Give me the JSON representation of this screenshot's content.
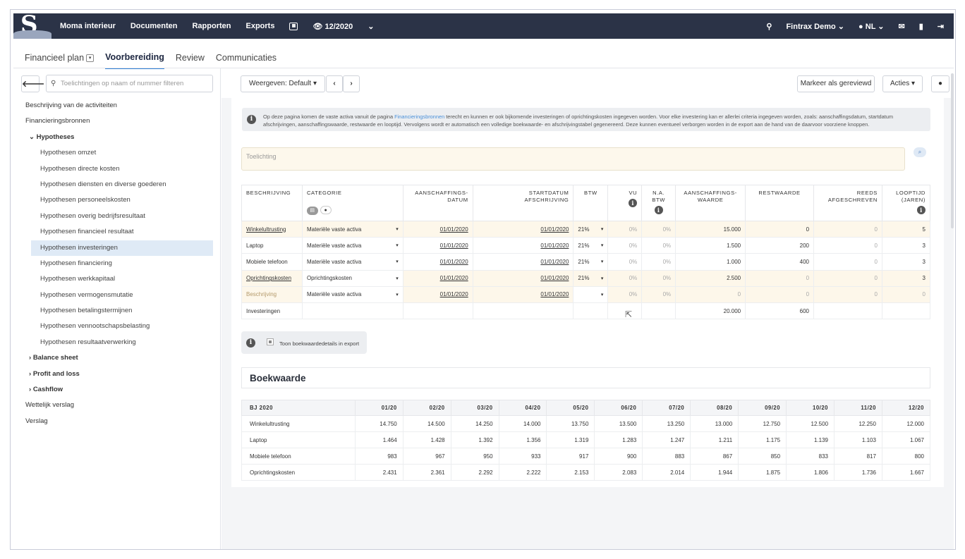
{
  "topbar": {
    "nav": [
      "Moma interieur",
      "Documenten",
      "Rapporten",
      "Exports"
    ],
    "period": "12/2020",
    "user": "Fintrax Demo",
    "lang": "NL"
  },
  "subnav": {
    "tabs": [
      "Financieel plan",
      "Voorbereiding",
      "Review",
      "Communicaties"
    ]
  },
  "sidebar": {
    "filter_placeholder": "Toelichtingen op naam of nummer filteren",
    "items": [
      "Beschrijving van de activiteiten",
      "Financieringsbronnen",
      "Hypotheses",
      "Hypothesen omzet",
      "Hypothesen directe kosten",
      "Hypothesen diensten en diverse goederen",
      "Hypothesen personeelskosten",
      "Hypothesen overig bedrijfsresultaat",
      "Hypothesen financieel resultaat",
      "Hypothesen investeringen",
      "Hypothesen financiering",
      "Hypothesen werkkapitaal",
      "Hypothesen vermogensmutatie",
      "Hypothesen betalingstermijnen",
      "Hypothesen vennootschapsbelasting",
      "Hypothesen resultaatverwerking",
      "Balance sheet",
      "Profit and loss",
      "Cashflow",
      "Wettelijk verslag",
      "Verslag"
    ]
  },
  "toolbar": {
    "view": "Weergeven: Default",
    "mark_reviewed": "Markeer als gereviewd",
    "actions": "Acties"
  },
  "info": {
    "text_before": "Op deze pagina komen de vaste activa vanuit de pagina ",
    "link": "Financieringsbronnen",
    "text_after": " terecht en kunnen er ook bijkomende investeringen of oprichtingskosten ingegeven worden. Voor elke investering kan er allerlei criteria ingegeven worden, zoals: aanschaffingsdatum, startdatum afschrijvingen, aanschaffingswaarde, restwaarde en looptijd. Vervolgens wordt er automatisch een volledige boekwaarde- en afschrijvingstabel gegenereerd. Deze kunnen eventueel verborgen worden in de export aan de hand van de daarvoor voorziene knoppen."
  },
  "toelichting_placeholder": "Toelichting",
  "investments": {
    "headers": {
      "beschrijving": "BESCHRIJVING",
      "categorie": "CATEGORIE",
      "aanschaf1": "AANSCHAFFINGS-",
      "aanschaf2": "DATUM",
      "start1": "STARTDATUM",
      "start2": "AFSCHRIJVING",
      "btw": "BTW",
      "vu": "VU",
      "na1": "N.A.",
      "na2": "BTW",
      "waarde1": "AANSCHAFFINGS-",
      "waarde2": "WAARDE",
      "rest": "RESTWAARDE",
      "reeds1": "REEDS",
      "reeds2": "AFGESCHREVEN",
      "loop1": "LOOPTIJD",
      "loop2": "(JAREN)"
    },
    "rows": [
      {
        "desc": "Winkelultrusting",
        "cat": "Materiële vaste activa",
        "aanschaf": "01/01/2020",
        "start": "01/01/2020",
        "btw": "21%",
        "vu": "0%",
        "na": "0%",
        "waarde": "15.000",
        "rest": "0",
        "reeds": "0",
        "loop": "5"
      },
      {
        "desc": "Laptop",
        "cat": "Materiële vaste activa",
        "aanschaf": "01/01/2020",
        "start": "01/01/2020",
        "btw": "21%",
        "vu": "0%",
        "na": "0%",
        "waarde": "1.500",
        "rest": "200",
        "reeds": "0",
        "loop": "3"
      },
      {
        "desc": "Mobiele telefoon",
        "cat": "Materiële vaste activa",
        "aanschaf": "01/01/2020",
        "start": "01/01/2020",
        "btw": "21%",
        "vu": "0%",
        "na": "0%",
        "waarde": "1.000",
        "rest": "400",
        "reeds": "0",
        "loop": "3"
      },
      {
        "desc": "Oprichtingskosten",
        "cat": "Oprichtingskosten",
        "aanschaf": "01/01/2020",
        "start": "01/01/2020",
        "btw": "21%",
        "vu": "0%",
        "na": "0%",
        "waarde": "2.500",
        "rest": "0",
        "reeds": "0",
        "loop": "3"
      },
      {
        "desc": "Beschrijving",
        "cat": "Materiële vaste activa",
        "aanschaf": "01/01/2020",
        "start": "01/01/2020",
        "btw": "",
        "vu": "0%",
        "na": "0%",
        "waarde": "0",
        "rest": "0",
        "reeds": "0",
        "loop": "0"
      }
    ],
    "total": {
      "label": "Investeringen",
      "waarde": "20.000",
      "rest": "600"
    }
  },
  "toggle_label": "Toon boekwaardedetails in export",
  "boekwaarde": {
    "title": "Boekwaarde",
    "year_label": "BJ 2020",
    "months": [
      "01/20",
      "02/20",
      "03/20",
      "04/20",
      "05/20",
      "06/20",
      "07/20",
      "08/20",
      "09/20",
      "10/20",
      "11/20",
      "12/20"
    ],
    "rows": [
      {
        "name": "Winkelultrusting",
        "values": [
          "14.750",
          "14.500",
          "14.250",
          "14.000",
          "13.750",
          "13.500",
          "13.250",
          "13.000",
          "12.750",
          "12.500",
          "12.250",
          "12.000"
        ]
      },
      {
        "name": "Laptop",
        "values": [
          "1.464",
          "1.428",
          "1.392",
          "1.356",
          "1.319",
          "1.283",
          "1.247",
          "1.211",
          "1.175",
          "1.139",
          "1.103",
          "1.067"
        ]
      },
      {
        "name": "Mobiele telefoon",
        "values": [
          "983",
          "967",
          "950",
          "933",
          "917",
          "900",
          "883",
          "867",
          "850",
          "833",
          "817",
          "800"
        ]
      },
      {
        "name": "Oprichtingskosten",
        "values": [
          "2.431",
          "2.361",
          "2.292",
          "2.222",
          "2.153",
          "2.083",
          "2.014",
          "1.944",
          "1.875",
          "1.806",
          "1.736",
          "1.667"
        ]
      }
    ]
  }
}
